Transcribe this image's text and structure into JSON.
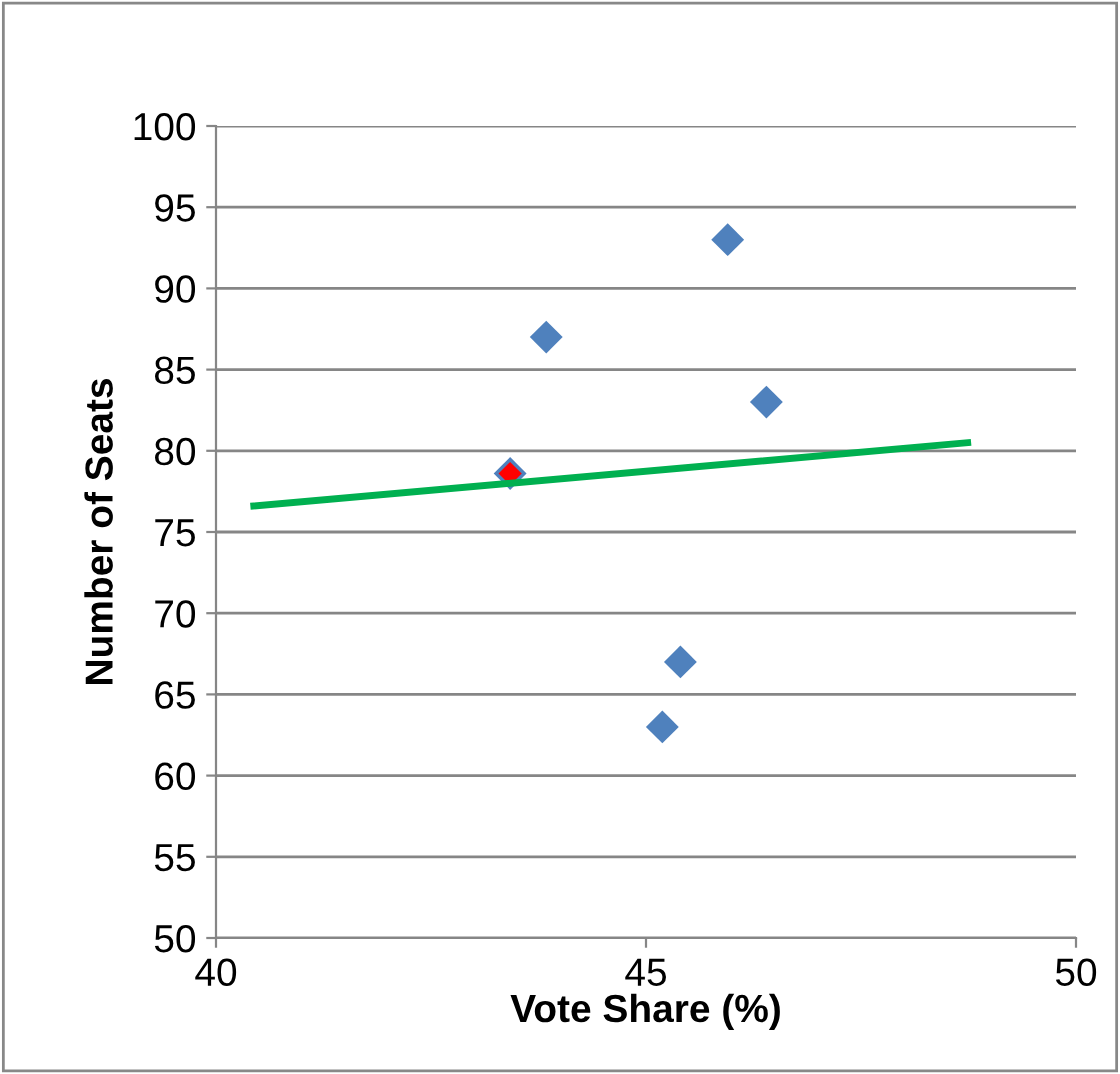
{
  "chart_data": {
    "type": "scatter",
    "xlabel": "Vote Share (%)",
    "ylabel": "Number of Seats",
    "xlim": [
      40,
      50
    ],
    "xticks": [
      40,
      45,
      50
    ],
    "ylim": [
      50,
      100
    ],
    "yticks": [
      50,
      55,
      60,
      65,
      70,
      75,
      80,
      85,
      90,
      95,
      100
    ],
    "grid": "y",
    "marker": "diamond",
    "series": [
      {
        "color": "#4f81bd",
        "x": [
          43.42,
          43.84,
          45.95,
          46.4,
          45.4,
          45.19
        ],
        "values": [
          78.6,
          87,
          93,
          83,
          67,
          63
        ]
      },
      {
        "color": "#ff0000",
        "x": [
          43.42
        ],
        "values": [
          78.6
        ]
      },
      {
        "type": "line",
        "color": "#00b050",
        "marker": "none",
        "x": [
          40.44,
          48.74
        ],
        "values": [
          76.6,
          80.5
        ]
      }
    ]
  }
}
